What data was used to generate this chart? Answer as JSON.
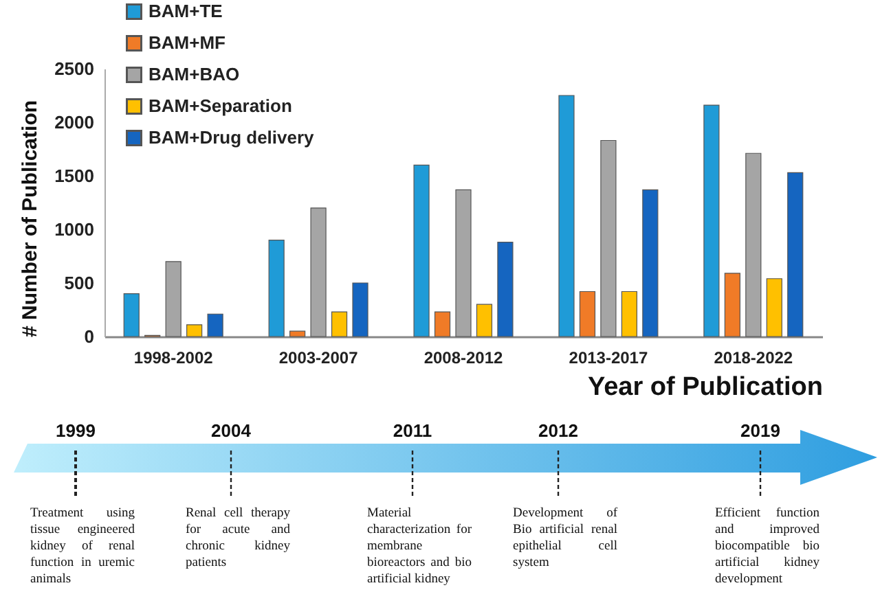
{
  "chart_data": {
    "type": "bar",
    "xlabel": "Year of Publication",
    "ylabel": "# Number of Publication",
    "categories": [
      "1998-2002",
      "2003-2007",
      "2008-2012",
      "2013-2017",
      "2018-2022"
    ],
    "series": [
      {
        "name": "BAM+TE",
        "color": "#1f9bd7",
        "values": [
          400,
          900,
          1600,
          2250,
          2160
        ]
      },
      {
        "name": "BAM+MF",
        "color": "#f07b27",
        "values": [
          10,
          50,
          230,
          420,
          590
        ]
      },
      {
        "name": "BAM+BAO",
        "color": "#a5a5a5",
        "values": [
          700,
          1200,
          1370,
          1830,
          1710
        ]
      },
      {
        "name": "BAM+Separation",
        "color": "#ffc000",
        "values": [
          110,
          230,
          300,
          420,
          540
        ]
      },
      {
        "name": "BAM+Drug delivery",
        "color": "#1565c0",
        "values": [
          210,
          500,
          880,
          1370,
          1530
        ]
      }
    ],
    "ylim": [
      0,
      2500
    ],
    "yticks": [
      0,
      500,
      1000,
      1500,
      2000,
      2500
    ],
    "legend": "top left",
    "annotations": [
      "1999",
      "Treatment using tissue engineered kidney of renal function in uremic animals",
      "2004",
      "Renal cell therapy for acute and chronic kidney patients",
      "2011",
      "Material characterization for membrane bioreactors and bio artificial kidney",
      "2012",
      "Development of Bio artificial renal epithelial cell system",
      "2019",
      "Efficient function and improved biocompatible bio artificial kidney development"
    ]
  }
}
